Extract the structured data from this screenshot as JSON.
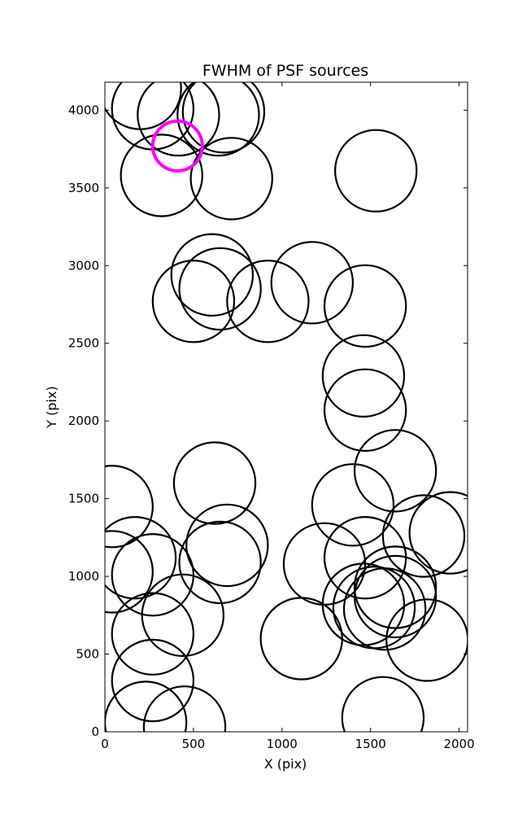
{
  "chart_data": {
    "type": "scatter",
    "marker": "open-circle",
    "title": "FWHM of PSF sources",
    "xlabel": "X (pix)",
    "ylabel": "Y (pix)",
    "xlim": [
      0,
      2048
    ],
    "ylim": [
      0,
      4180
    ],
    "grid": false,
    "xticks": [
      0,
      500,
      1000,
      1500,
      2000
    ],
    "yticks": [
      0,
      500,
      1000,
      1500,
      2000,
      2500,
      3000,
      3500,
      4000
    ],
    "default_color": "#000000",
    "highlight_color": "#ff00ff",
    "points": [
      {
        "x": 200,
        "y": 4140,
        "r": 230
      },
      {
        "x": 270,
        "y": 4010,
        "r": 230
      },
      {
        "x": 415,
        "y": 3970,
        "r": 230
      },
      {
        "x": 640,
        "y": 3970,
        "r": 230
      },
      {
        "x": 670,
        "y": 3990,
        "r": 230
      },
      {
        "x": 320,
        "y": 3580,
        "r": 230
      },
      {
        "x": 715,
        "y": 3560,
        "r": 230
      },
      {
        "x": 1530,
        "y": 3610,
        "r": 230
      },
      {
        "x": 410,
        "y": 3770,
        "r": 140,
        "highlight": true
      },
      {
        "x": 605,
        "y": 2940,
        "r": 230
      },
      {
        "x": 650,
        "y": 2850,
        "r": 230
      },
      {
        "x": 500,
        "y": 2770,
        "r": 230
      },
      {
        "x": 920,
        "y": 2770,
        "r": 230
      },
      {
        "x": 1170,
        "y": 2890,
        "r": 230
      },
      {
        "x": 1470,
        "y": 2740,
        "r": 230
      },
      {
        "x": 1460,
        "y": 2290,
        "r": 230
      },
      {
        "x": 1470,
        "y": 2070,
        "r": 230
      },
      {
        "x": 1640,
        "y": 1680,
        "r": 230
      },
      {
        "x": 620,
        "y": 1600,
        "r": 230
      },
      {
        "x": 40,
        "y": 1450,
        "r": 230
      },
      {
        "x": 1400,
        "y": 1460,
        "r": 230
      },
      {
        "x": 1800,
        "y": 1260,
        "r": 230
      },
      {
        "x": 1950,
        "y": 1280,
        "r": 230
      },
      {
        "x": 690,
        "y": 1200,
        "r": 230
      },
      {
        "x": 170,
        "y": 1120,
        "r": 230
      },
      {
        "x": 650,
        "y": 1090,
        "r": 230
      },
      {
        "x": 1240,
        "y": 1080,
        "r": 230
      },
      {
        "x": 1470,
        "y": 1120,
        "r": 230
      },
      {
        "x": 1640,
        "y": 930,
        "r": 230
      },
      {
        "x": 40,
        "y": 1030,
        "r": 230
      },
      {
        "x": 270,
        "y": 1010,
        "r": 230
      },
      {
        "x": 1640,
        "y": 870,
        "r": 230
      },
      {
        "x": 1520,
        "y": 800,
        "r": 230
      },
      {
        "x": 1460,
        "y": 820,
        "r": 230
      },
      {
        "x": 1580,
        "y": 790,
        "r": 230
      },
      {
        "x": 440,
        "y": 750,
        "r": 230
      },
      {
        "x": 270,
        "y": 630,
        "r": 230
      },
      {
        "x": 1110,
        "y": 600,
        "r": 230
      },
      {
        "x": 1820,
        "y": 590,
        "r": 230
      },
      {
        "x": 270,
        "y": 330,
        "r": 230
      },
      {
        "x": 230,
        "y": 60,
        "r": 230
      },
      {
        "x": 450,
        "y": 30,
        "r": 230
      },
      {
        "x": 1570,
        "y": 90,
        "r": 230
      }
    ]
  }
}
